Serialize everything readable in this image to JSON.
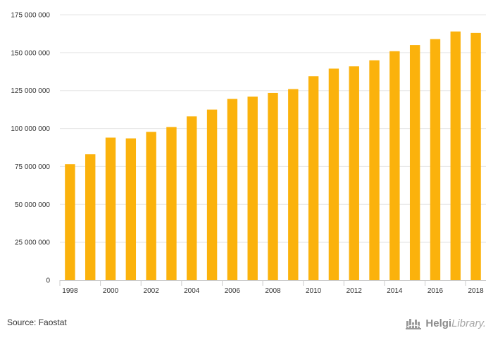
{
  "chart_data": {
    "type": "bar",
    "categories": [
      "1998",
      "1999",
      "2000",
      "2001",
      "2002",
      "2003",
      "2004",
      "2005",
      "2006",
      "2007",
      "2008",
      "2009",
      "2010",
      "2011",
      "2012",
      "2013",
      "2014",
      "2015",
      "2016",
      "2017",
      "2018"
    ],
    "values": [
      76500000,
      83000000,
      94000000,
      93500000,
      97800000,
      101000000,
      108000000,
      112500000,
      119500000,
      121000000,
      123500000,
      126000000,
      134500000,
      139500000,
      141000000,
      145000000,
      151000000,
      155000000,
      159000000,
      164000000,
      163000000
    ],
    "x_tick_labels": [
      "1998",
      "2000",
      "2002",
      "2004",
      "2006",
      "2008",
      "2010",
      "2012",
      "2014",
      "2016",
      "2018"
    ],
    "y_ticks": [
      0,
      25000000,
      50000000,
      75000000,
      100000000,
      125000000,
      150000000,
      175000000
    ],
    "y_tick_labels": [
      "0",
      "25 000 000",
      "50 000 000",
      "75 000 000",
      "100 000 000",
      "125 000 000",
      "150 000 000",
      "175 000 000"
    ],
    "ylim": [
      0,
      175000000
    ],
    "title": "",
    "xlabel": "",
    "ylabel": "",
    "grid": true,
    "bar_color": "#fbb20c",
    "grid_color": "#e6e6e6"
  },
  "footer": {
    "source": "Source: Faostat",
    "logo_bold": "Helgi",
    "logo_light": "Library."
  },
  "logo_icon": "helgi-library-castle-icon"
}
